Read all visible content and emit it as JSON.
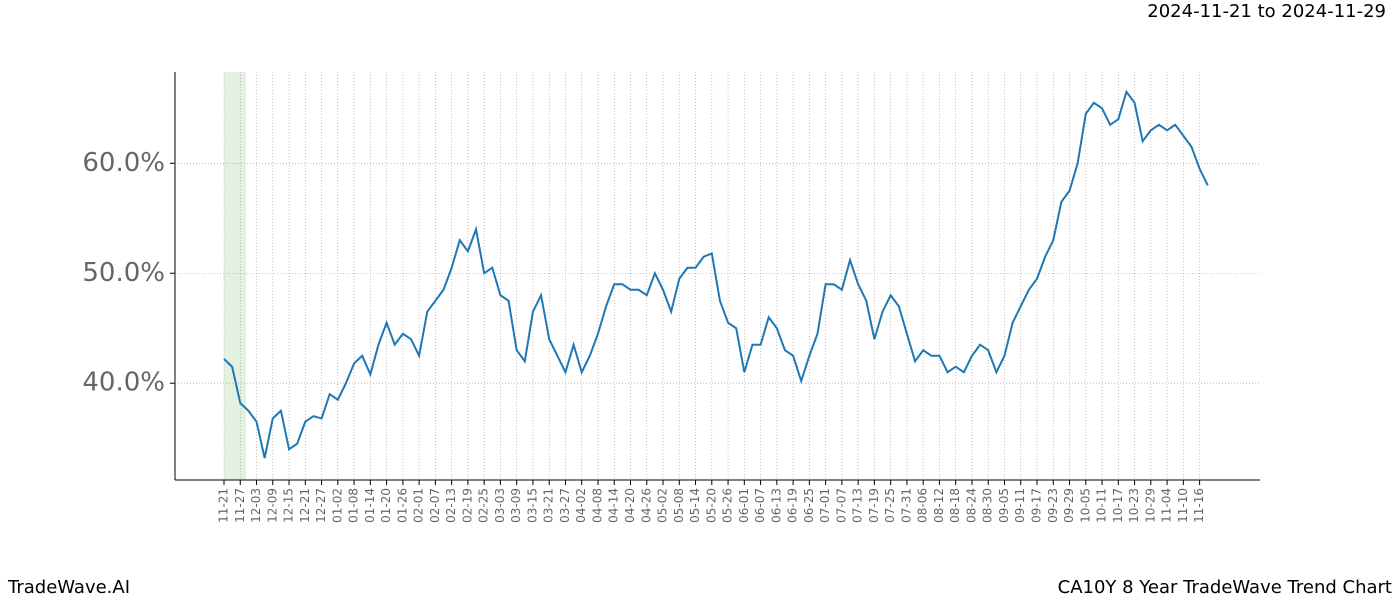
{
  "chart_data": {
    "type": "line",
    "title": "2024-11-21 to 2024-11-29",
    "categories": [
      "11-21",
      null,
      "11-27",
      null,
      "12-03",
      null,
      "12-09",
      null,
      "12-15",
      null,
      "12-21",
      null,
      "12-27",
      null,
      "01-02",
      null,
      "01-08",
      null,
      "01-14",
      null,
      "01-20",
      null,
      "01-26",
      null,
      "02-01",
      null,
      "02-07",
      null,
      "02-13",
      null,
      "02-19",
      null,
      "02-25",
      null,
      "03-03",
      null,
      "03-09",
      null,
      "03-15",
      null,
      "03-21",
      null,
      "03-27",
      null,
      "04-02",
      null,
      "04-08",
      null,
      "04-14",
      null,
      "04-20",
      null,
      "04-26",
      null,
      "05-02",
      null,
      "05-08",
      null,
      "05-14",
      null,
      "05-20",
      null,
      "05-26",
      null,
      "06-01",
      null,
      "06-07",
      null,
      "06-13",
      null,
      "06-19",
      null,
      "06-25",
      null,
      "07-01",
      null,
      "07-07",
      null,
      "07-13",
      null,
      "07-19",
      null,
      "07-25",
      null,
      "07-31",
      null,
      "08-06",
      null,
      "08-12",
      null,
      "08-18",
      null,
      "08-24",
      null,
      "08-30",
      null,
      "09-05",
      null,
      "09-11",
      null,
      "09-17",
      null,
      "09-23",
      null,
      "09-29",
      null,
      "10-05",
      null,
      "10-11",
      null,
      "10-17",
      null,
      "10-23",
      null,
      "10-29",
      null,
      "11-04",
      null,
      "11-10",
      null,
      "11-16",
      null
    ],
    "series": [
      {
        "color": "#1f77b4",
        "values": [
          42.2,
          41.5,
          38.2,
          37.5,
          36.5,
          33.2,
          36.8,
          37.5,
          34.0,
          34.5,
          36.5,
          37.0,
          36.8,
          39.0,
          38.5,
          40.0,
          41.8,
          42.5,
          40.8,
          43.5,
          45.5,
          43.5,
          44.5,
          44.0,
          42.5,
          46.5,
          47.5,
          48.5,
          50.5,
          53.0,
          52.0,
          54.0,
          50.0,
          50.5,
          48.0,
          47.5,
          43.0,
          42.0,
          46.5,
          48.0,
          44.0,
          42.5,
          41.0,
          43.5,
          41.0,
          42.5,
          44.5,
          47.0,
          49.0,
          49.0,
          48.5,
          48.5,
          48.0,
          50.0,
          48.5,
          46.5,
          49.5,
          50.5,
          50.5,
          51.5,
          51.8,
          47.5,
          45.5,
          45.0,
          41.0,
          43.5,
          43.5,
          46.0,
          45.0,
          43.0,
          42.5,
          40.2,
          42.5,
          44.5,
          49.0,
          49.0,
          48.5,
          51.2,
          49.0,
          47.5,
          44.0,
          46.5,
          48.0,
          47.0,
          44.5,
          42.0,
          43.0,
          42.5,
          42.5,
          41.0,
          41.5,
          41.0,
          42.5,
          43.5,
          43.0,
          41.0,
          42.5,
          45.5,
          47.0,
          48.5,
          49.5,
          51.5,
          53.0,
          56.5,
          57.5,
          60.0,
          64.5,
          65.5,
          65.0,
          63.5,
          64.0,
          66.5,
          65.5,
          62.0,
          63.0,
          63.5,
          63.0,
          63.5,
          62.5,
          61.5,
          59.5,
          58.0
        ]
      }
    ],
    "ylim": [
      31.2,
      68.3
    ],
    "yticks": [
      {
        "value": 40,
        "label": "40.0%"
      },
      {
        "value": 50,
        "label": "50.0%"
      },
      {
        "value": 60,
        "label": "60.0%"
      }
    ],
    "grid": true
  },
  "footer_left": "TradeWave.AI",
  "footer_right": "CA10Y 8 Year TradeWave Trend Chart"
}
